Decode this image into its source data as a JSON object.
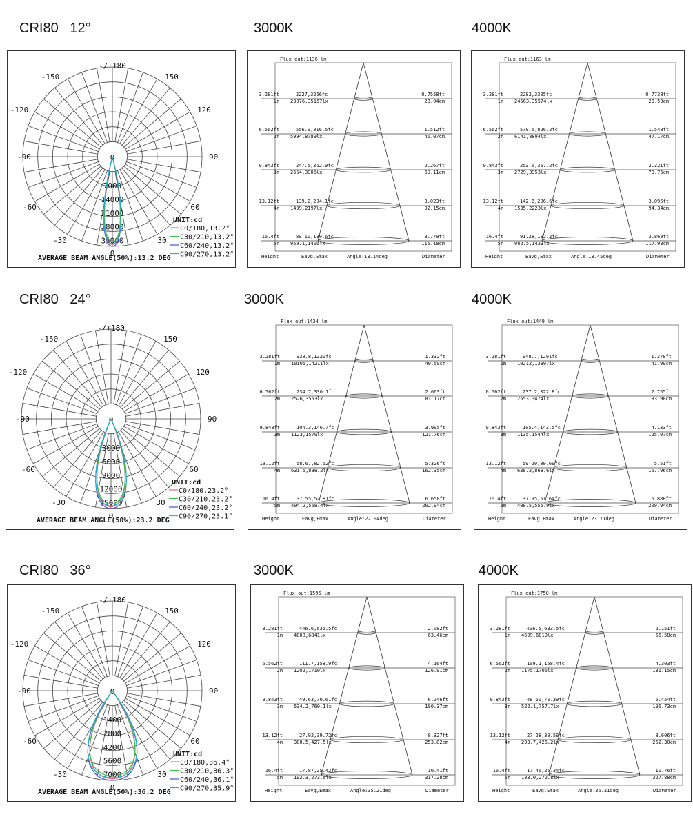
{
  "colors": {
    "c0": "#e8677a",
    "c30": "#3fbf4f",
    "c60": "#4a52d8",
    "c90": "#22b8cc"
  },
  "rows": [
    {
      "title": "CRI80   12°",
      "polar": {
        "top_label": "-/+180",
        "angle_labels": [
          "-150",
          "150",
          "-120",
          "120",
          "-90",
          "90",
          "-60",
          "60",
          "-30",
          "30",
          "0"
        ],
        "ring_labels": [
          "0",
          "7000",
          "14000",
          "21000",
          "28000",
          "35000"
        ],
        "unit": "UNIT:cd",
        "legend": [
          "C0/180,13.2°",
          "C30/210,13.2°",
          "C60/240,13.2°",
          "C90/270,13.2°"
        ],
        "footer": "AVERAGE BEAM ANGLE(50%):13.2 DEG",
        "half_beam_deg": 6.6
      },
      "cones": [
        {
          "title": "3000K",
          "flux": "Flux out:1136 lm",
          "heights": [
            [
              "3.281ft",
              "1m"
            ],
            [
              "6.562ft",
              "2m"
            ],
            [
              "9.843ft",
              "3m"
            ],
            [
              "13.12ft",
              "4m"
            ],
            [
              "16.4ft",
              "5m"
            ]
          ],
          "illum": [
            [
              "2227,3266fc",
              "23976,35157lx"
            ],
            [
              "556.9,816.5fc",
              "5994,8789lx"
            ],
            [
              "247.5,362.9fc",
              "2664,3906lx"
            ],
            [
              "139.2,204.1fc",
              "1499,2197lx"
            ],
            [
              "89.10,130.6fc",
              "959.1,1406lx"
            ]
          ],
          "diam": [
            [
              "0.7558ft",
              "23.04cm"
            ],
            [
              "1.512ft",
              "46.07cm"
            ],
            [
              "2.267ft",
              "69.11cm"
            ],
            [
              "3.023ft",
              "92.15cm"
            ],
            [
              "3.779ft",
              "115.18cm"
            ]
          ],
          "footer": [
            "Height",
            "Eavg,Emax",
            "Angle:13.14deg",
            "Diameter"
          ]
        },
        {
          "title": "4000K",
          "flux": "Flux out:1163 lm",
          "heights": [
            [
              "3.281ft",
              "1m"
            ],
            [
              "6.562ft",
              "2m"
            ],
            [
              "9.843ft",
              "3m"
            ],
            [
              "13.12ft",
              "4m"
            ],
            [
              "16.4ft",
              "5m"
            ]
          ],
          "illum": [
            [
              "2282,3305fc",
              "24563,35574lx"
            ],
            [
              "570.5,826.2fc",
              "6141,8894lx"
            ],
            [
              "253.6,367.2fc",
              "2729,3953lx"
            ],
            [
              "142.6,206.6fc",
              "1535,2223lx"
            ],
            [
              "91.28,132.2fc",
              "982.5,1423lx"
            ]
          ],
          "diam": [
            [
              "0.7738ft",
              "23.59cm"
            ],
            [
              "1.548ft",
              "47.17cm"
            ],
            [
              "2.321ft",
              "70.76cm"
            ],
            [
              "3.095ft",
              "94.34cm"
            ],
            [
              "3.869ft",
              "117.93cm"
            ]
          ],
          "footer": [
            "Height",
            "Eavg,Emax",
            "Angle:13.45deg",
            "Diameter"
          ]
        }
      ]
    },
    {
      "title": "CRI80   24°",
      "polar": {
        "top_label": "-/+180",
        "angle_labels": [
          "-150",
          "150",
          "-120",
          "120",
          "-90",
          "90",
          "-60",
          "60",
          "-30",
          "30",
          "0"
        ],
        "ring_labels": [
          "0",
          "3000",
          "6000",
          "9000",
          "12000",
          "15000"
        ],
        "unit": "UNIT:cd",
        "legend": [
          "C0/180,23.2°",
          "C30/210,23.2°",
          "C60/240,23.2°",
          "C90/270,23.1°"
        ],
        "footer": "AVERAGE BEAM ANGLE(50%):23.2 DEG",
        "half_beam_deg": 11.6
      },
      "cones": [
        {
          "title": "3000K",
          "flux": "Flux out:1434 lm",
          "heights": [
            [
              "3.281ft",
              "1m"
            ],
            [
              "6.562ft",
              "2m"
            ],
            [
              "9.843ft",
              "3m"
            ],
            [
              "13.12ft",
              "4m"
            ],
            [
              "16.4ft",
              "5m"
            ]
          ],
          "illum": [
            [
              "938.8,1320fc",
              "10105,14211lx"
            ],
            [
              "234.7,330.1fc",
              "2526,3553lx"
            ],
            [
              "104.3,146.7fc",
              "1123,1579lx"
            ],
            [
              "58.67,82.52fc",
              "631.5,888.2lx"
            ],
            [
              "37.55,52.81fc",
              "404.2,568.4lx"
            ]
          ],
          "diam": [
            [
              "1.332ft",
              "40.59cm"
            ],
            [
              "2.663ft",
              "81.17cm"
            ],
            [
              "3.995ft",
              "121.76cm"
            ],
            [
              "5.326ft",
              "162.35cm"
            ],
            [
              "6.658ft",
              "202.94cm"
            ]
          ],
          "footer": [
            "Height",
            "Eavg,Emax",
            "Angle:22.94deg",
            "Diameter"
          ]
        },
        {
          "title": "4000K",
          "flux": "Flux out:1449 lm",
          "heights": [
            [
              "3.281ft",
              "1m"
            ],
            [
              "6.562ft",
              "2m"
            ],
            [
              "9.843ft",
              "3m"
            ],
            [
              "13.12ft",
              "4m"
            ],
            [
              "16.4ft",
              "5m"
            ]
          ],
          "illum": [
            [
              "948.7,1291fc",
              "10212,13897lx"
            ],
            [
              "237.2,322.8fc",
              "2553,3474lx"
            ],
            [
              "105.4,143.5fc",
              "1135,1544lx"
            ],
            [
              "59.29,80.69fc",
              "638.2,868.6lx"
            ],
            [
              "37.95,51.64fc",
              "408.5,555.9lx"
            ]
          ],
          "diam": [
            [
              "1.378ft",
              "41.99cm"
            ],
            [
              "2.755ft",
              "83.98cm"
            ],
            [
              "4.133ft",
              "125.97cm"
            ],
            [
              "5.51ft",
              "167.96cm"
            ],
            [
              "6.888ft",
              "209.94cm"
            ]
          ],
          "footer": [
            "Height",
            "Eavg,Emax",
            "Angle:23.71deg",
            "Diameter"
          ]
        }
      ]
    },
    {
      "title": "CRI80   36°",
      "polar": {
        "top_label": "-/+180",
        "angle_labels": [
          "-150",
          "150",
          "-120",
          "120",
          "-90",
          "90",
          "-60",
          "60",
          "-30",
          "30",
          "0"
        ],
        "ring_labels": [
          "0",
          "1400",
          "2800",
          "4200",
          "5600",
          "7000"
        ],
        "unit": "UNIT:cd",
        "legend": [
          "C0/180,36.4°",
          "C30/210,36.3°",
          "C60/240,36.1°",
          "C90/270,35.9°"
        ],
        "footer": "AVERAGE BEAM ANGLE(50%):36.2 DEG",
        "half_beam_deg": 18.1
      },
      "cones": [
        {
          "title": "3000K",
          "flux": "Flux out:1595 lm",
          "heights": [
            [
              "3.281ft",
              "1m"
            ],
            [
              "6.562ft",
              "2m"
            ],
            [
              "9.843ft",
              "3m"
            ],
            [
              "13.12ft",
              "4m"
            ],
            [
              "16.4ft",
              "5m"
            ]
          ],
          "illum": [
            [
              "446.6,635.5fc",
              "4808,6841lx"
            ],
            [
              "111.7,158.9fc",
              "1202,1710lx"
            ],
            [
              "49.63,70.61fc",
              "534.2,760.1lx"
            ],
            [
              "27.92,39.72fc",
              "300.5,427.5lx"
            ],
            [
              "17.87,25.42fc",
              "192.3,273.6lx"
            ]
          ],
          "diam": [
            [
              "2.082ft",
              "63.46cm"
            ],
            [
              "4.164ft",
              "126.91cm"
            ],
            [
              "6.246ft",
              "190.37cm"
            ],
            [
              "8.327ft",
              "253.82cm"
            ],
            [
              "10.41ft",
              "317.28cm"
            ]
          ],
          "footer": [
            "Height",
            "Eavg,Emax",
            "Angle:35.21deg",
            "Diameter"
          ]
        },
        {
          "title": "4000K",
          "flux": "Flux out:1750 lm",
          "heights": [
            [
              "3.281ft",
              "1m"
            ],
            [
              "6.562ft",
              "2m"
            ],
            [
              "9.843ft",
              "3m"
            ],
            [
              "13.12ft",
              "4m"
            ],
            [
              "16.4ft",
              "5m"
            ]
          ],
          "illum": [
            [
              "436.5,633.5fc",
              "4699,6819lx"
            ],
            [
              "109.1,158.4fc",
              "1175,1705lx"
            ],
            [
              "48.50,70.39fc",
              "522.1,757.7lx"
            ],
            [
              "27.28,39.59fc",
              "293.7,426.2lx"
            ],
            [
              "17.46,25.34fc",
              "188.0,272.8lx"
            ]
          ],
          "diam": [
            [
              "2.151ft",
              "65.58cm"
            ],
            [
              "4.303ft",
              "131.15cm"
            ],
            [
              "6.454ft",
              "196.73cm"
            ],
            [
              "8.606ft",
              "262.30cm"
            ],
            [
              "10.76ft",
              "327.88cm"
            ]
          ],
          "footer": [
            "Height",
            "Eavg,Emax",
            "Angle:36.31deg",
            "Diameter"
          ]
        }
      ]
    }
  ]
}
